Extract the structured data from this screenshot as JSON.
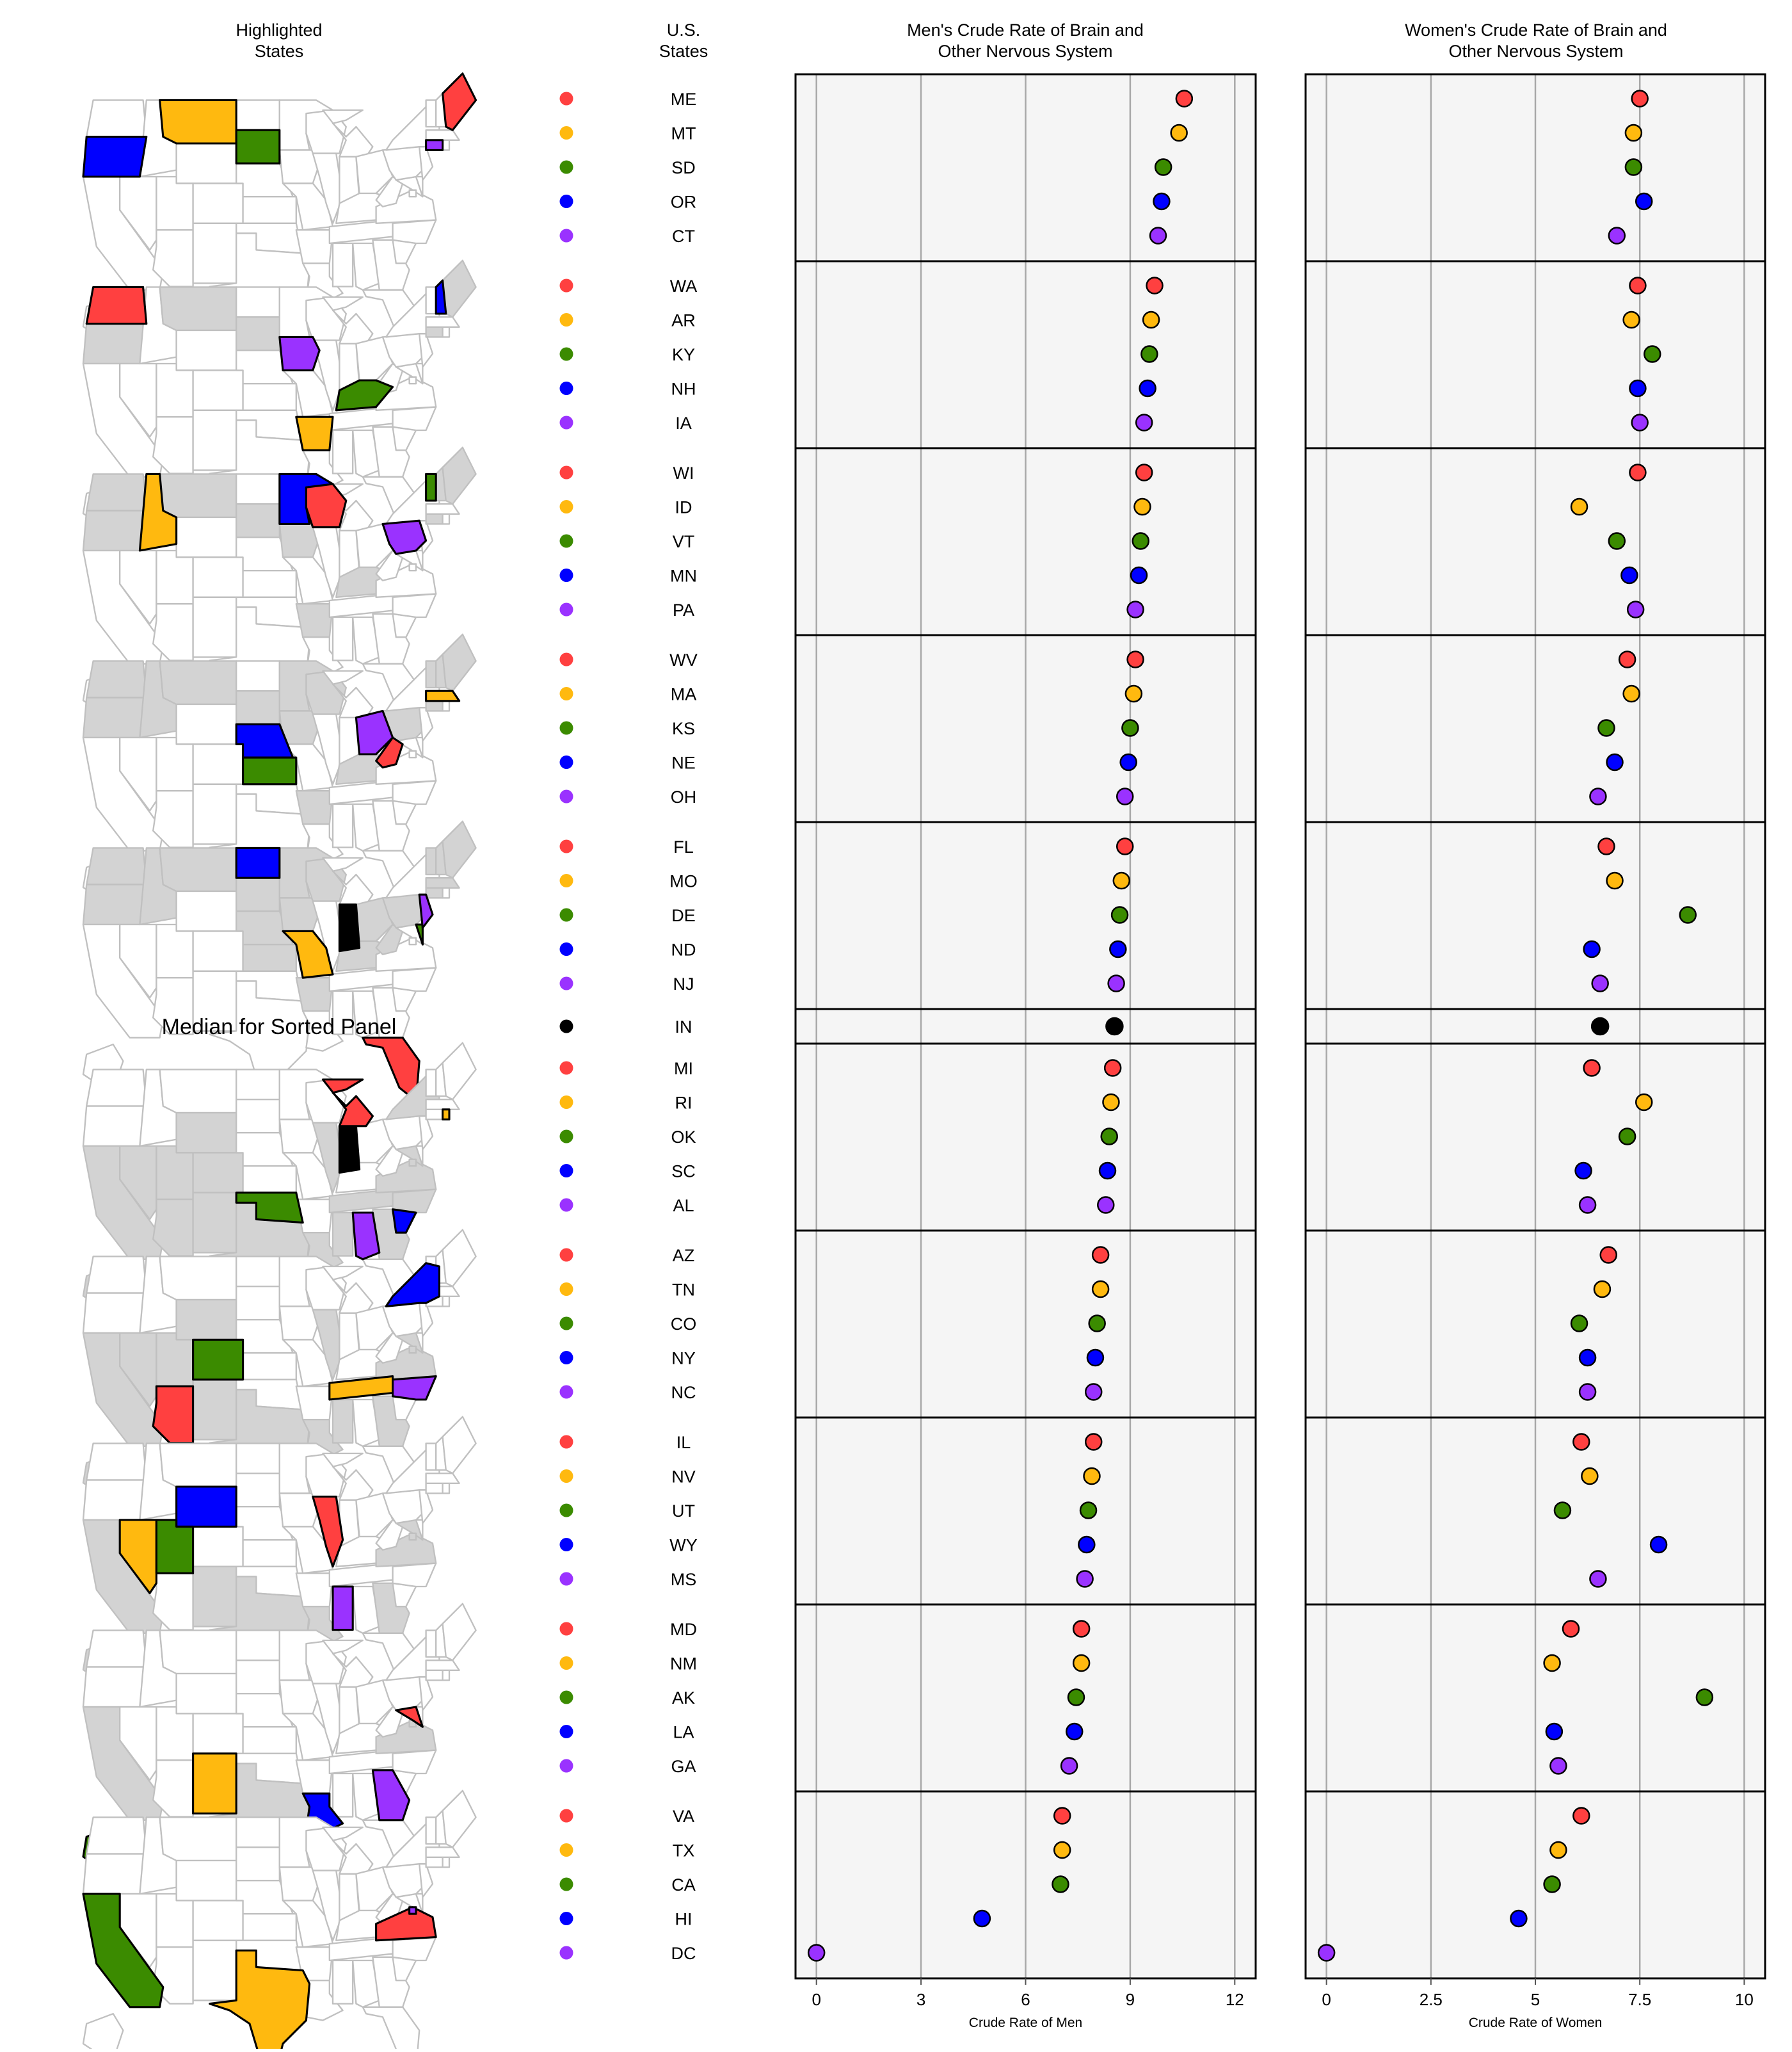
{
  "headers": {
    "highlighted_states": [
      "Highlighted",
      "States"
    ],
    "us_states": [
      "U.S.",
      "States"
    ],
    "men_title": [
      "Men's Crude Rate of Brain and",
      "Other Nervous System"
    ],
    "women_title": [
      "Women's Crude Rate of Brain and",
      "Other Nervous System"
    ]
  },
  "median_label": "Median for Sorted Panel",
  "colors": {
    "red": "#ff4040",
    "orange": "#ffb90f",
    "green": "#3b8b00",
    "blue": "#0000ff",
    "purple": "#9a32ff",
    "black": "#000000",
    "panel_bg": "#f5f5f5",
    "gridline": "#a8a8a8",
    "map_referenced": "#d3d3d3",
    "map_border": "#c0c0c0"
  },
  "chart_data": [
    {
      "type": "scatter",
      "title": "Men's Crude Rate of Brain and Other Nervous System",
      "xlabel": "Crude Rate of Men",
      "xlim": [
        -0.6,
        12.6
      ],
      "xticks": [
        0,
        3,
        6,
        9,
        12
      ],
      "xtick_labels": [
        "0",
        "3",
        "6",
        "9",
        "12"
      ],
      "grid": true,
      "categories": [
        "ME",
        "MT",
        "SD",
        "OR",
        "CT",
        "WA",
        "AR",
        "KY",
        "NH",
        "IA",
        "WI",
        "ID",
        "VT",
        "MN",
        "PA",
        "WV",
        "MA",
        "KS",
        "NE",
        "OH",
        "FL",
        "MO",
        "DE",
        "ND",
        "NJ",
        "IN",
        "MI",
        "RI",
        "OK",
        "SC",
        "AL",
        "AZ",
        "TN",
        "CO",
        "NY",
        "NC",
        "IL",
        "NV",
        "UT",
        "WY",
        "MS",
        "MD",
        "NM",
        "AK",
        "LA",
        "GA",
        "VA",
        "TX",
        "CA",
        "HI",
        "DC"
      ],
      "values": [
        10.55,
        10.4,
        9.95,
        9.9,
        9.8,
        9.7,
        9.6,
        9.55,
        9.5,
        9.4,
        9.4,
        9.35,
        9.3,
        9.25,
        9.15,
        9.15,
        9.1,
        9.0,
        8.95,
        8.85,
        8.85,
        8.75,
        8.7,
        8.65,
        8.6,
        8.55,
        8.5,
        8.45,
        8.4,
        8.35,
        8.3,
        8.15,
        8.15,
        8.05,
        8.0,
        7.95,
        7.95,
        7.9,
        7.8,
        7.75,
        7.7,
        7.6,
        7.6,
        7.45,
        7.4,
        7.25,
        7.05,
        7.05,
        7.0,
        4.75,
        0.0
      ]
    },
    {
      "type": "scatter",
      "title": "Women's Crude Rate of Brain and Other Nervous System",
      "xlabel": "Crude Rate of Women",
      "xlim": [
        -0.5,
        10.5
      ],
      "xticks": [
        0,
        2.5,
        5,
        7.5,
        10
      ],
      "xtick_labels": [
        "0",
        "2.5",
        "5",
        "7.5",
        "10"
      ],
      "grid": true,
      "categories": [
        "ME",
        "MT",
        "SD",
        "OR",
        "CT",
        "WA",
        "AR",
        "KY",
        "NH",
        "IA",
        "WI",
        "ID",
        "VT",
        "MN",
        "PA",
        "WV",
        "MA",
        "KS",
        "NE",
        "OH",
        "FL",
        "MO",
        "DE",
        "ND",
        "NJ",
        "IN",
        "MI",
        "RI",
        "OK",
        "SC",
        "AL",
        "AZ",
        "TN",
        "CO",
        "NY",
        "NC",
        "IL",
        "NV",
        "UT",
        "WY",
        "MS",
        "MD",
        "NM",
        "AK",
        "LA",
        "GA",
        "VA",
        "TX",
        "CA",
        "HI",
        "DC"
      ],
      "values": [
        7.5,
        7.35,
        7.35,
        7.6,
        6.95,
        7.45,
        7.3,
        7.8,
        7.45,
        7.5,
        7.45,
        6.05,
        6.95,
        7.25,
        7.4,
        7.2,
        7.3,
        6.7,
        6.9,
        6.5,
        6.7,
        6.9,
        8.65,
        6.35,
        6.55,
        6.55,
        6.35,
        7.6,
        7.2,
        6.15,
        6.25,
        6.75,
        6.6,
        6.05,
        6.25,
        6.25,
        6.1,
        6.3,
        5.65,
        7.95,
        6.5,
        5.85,
        5.4,
        9.05,
        5.45,
        5.55,
        6.1,
        5.55,
        5.4,
        4.6,
        0.0
      ]
    }
  ],
  "panels": [
    {
      "states": [
        "ME",
        "MT",
        "SD",
        "OR",
        "CT"
      ]
    },
    {
      "states": [
        "WA",
        "AR",
        "KY",
        "NH",
        "IA"
      ]
    },
    {
      "states": [
        "WI",
        "ID",
        "VT",
        "MN",
        "PA"
      ]
    },
    {
      "states": [
        "WV",
        "MA",
        "KS",
        "NE",
        "OH"
      ]
    },
    {
      "states": [
        "FL",
        "MO",
        "DE",
        "ND",
        "NJ"
      ]
    },
    {
      "states": [
        "IN"
      ],
      "median": true
    },
    {
      "states": [
        "MI",
        "RI",
        "OK",
        "SC",
        "AL"
      ]
    },
    {
      "states": [
        "AZ",
        "TN",
        "CO",
        "NY",
        "NC"
      ]
    },
    {
      "states": [
        "IL",
        "NV",
        "UT",
        "WY",
        "MS"
      ]
    },
    {
      "states": [
        "MD",
        "NM",
        "AK",
        "LA",
        "GA"
      ]
    },
    {
      "states": [
        "VA",
        "TX",
        "CA",
        "HI",
        "DC"
      ]
    }
  ]
}
